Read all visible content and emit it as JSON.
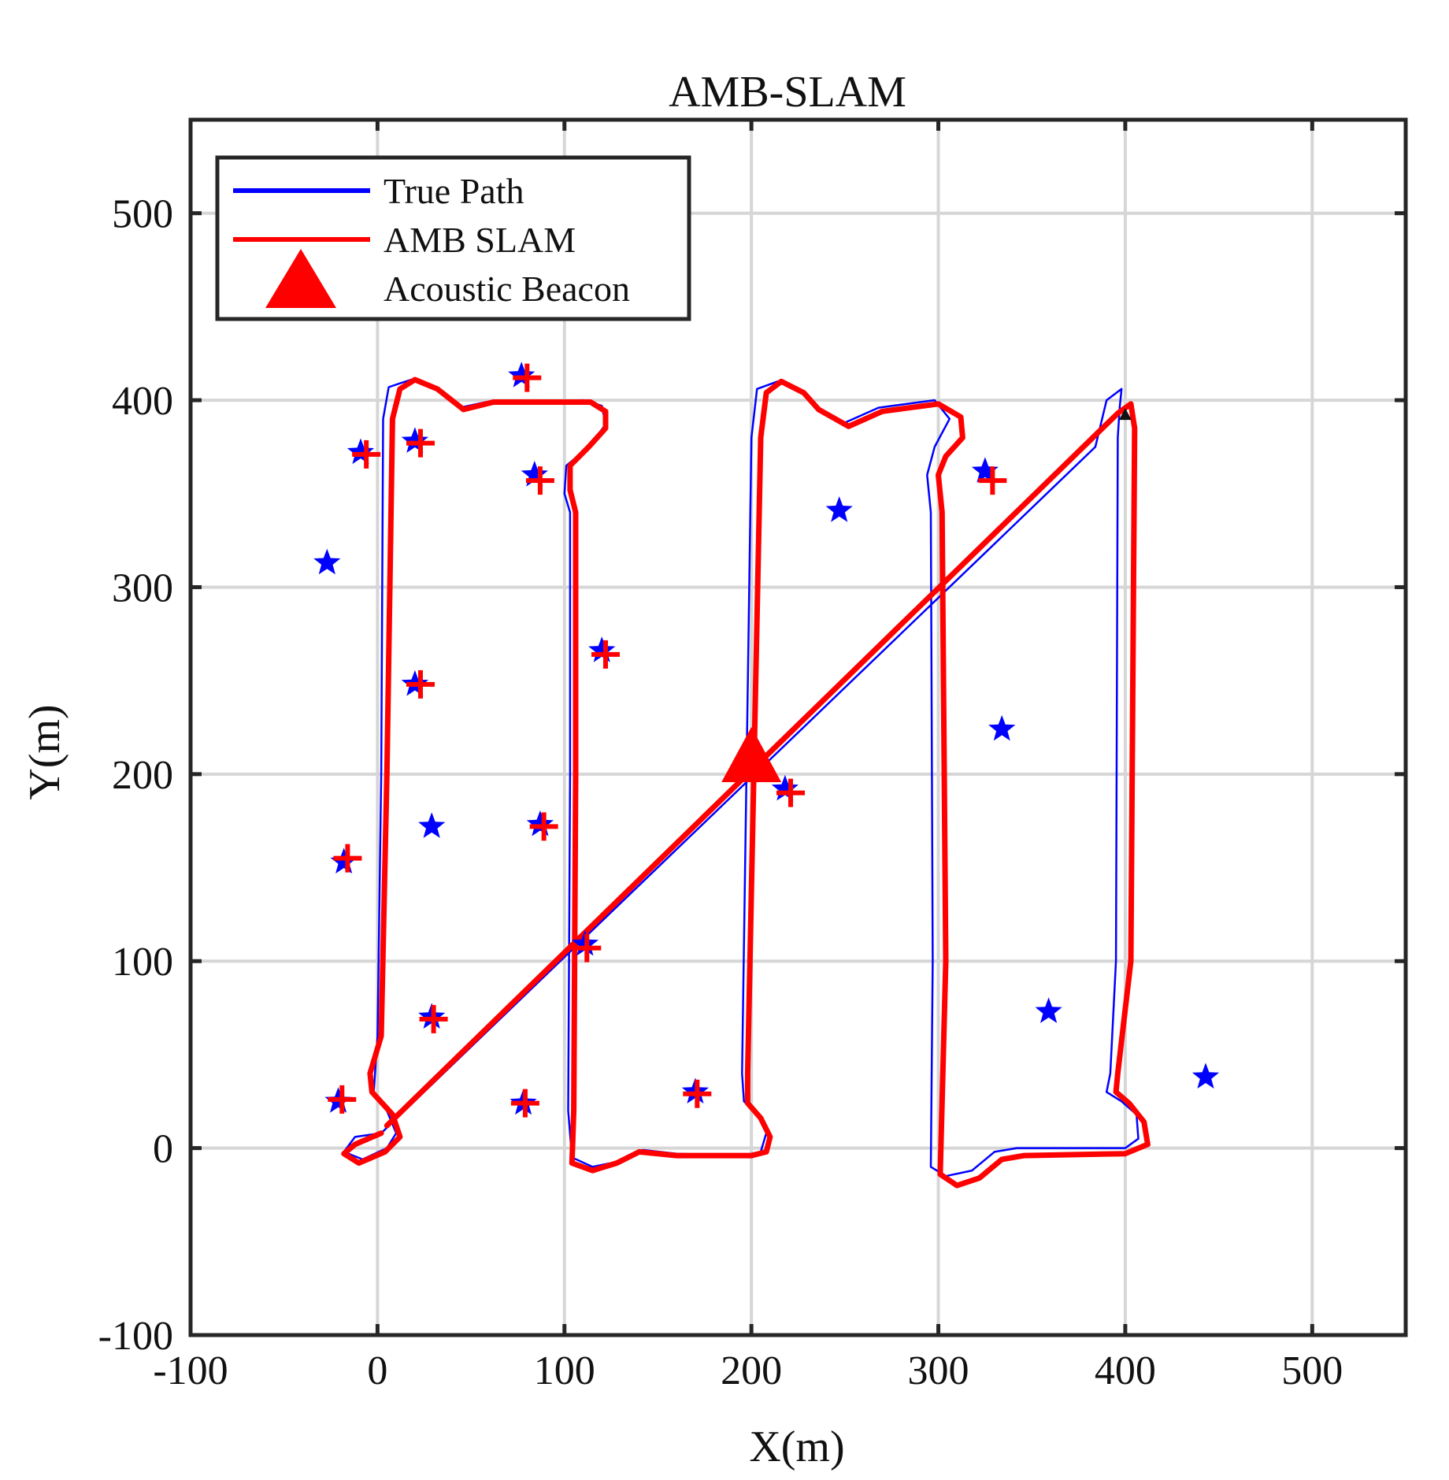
{
  "chart_data": {
    "type": "line",
    "title": "AMB-SLAM",
    "xlabel": "X(m)",
    "ylabel": "Y(m)",
    "xlim": [
      -100,
      550
    ],
    "ylim": [
      -100,
      550
    ],
    "xticks": [
      -100,
      0,
      100,
      200,
      300,
      400,
      500
    ],
    "yticks": [
      -100,
      0,
      100,
      200,
      300,
      400,
      500
    ],
    "xtick_labels": [
      "-100",
      "0",
      "100",
      "200",
      "300",
      "400",
      "500"
    ],
    "ytick_labels": [
      "-100",
      "0",
      "100",
      "200",
      "300",
      "400",
      "500"
    ],
    "grid": true,
    "legend_position": "top-left",
    "legend": [
      {
        "label": "True Path",
        "marker": "line",
        "color": "#0000ff"
      },
      {
        "label": "AMB SLAM",
        "marker": "line",
        "color": "#ff0000"
      },
      {
        "label": "Acoustic Beacon",
        "marker": "triangle",
        "color": "#ff0000"
      }
    ],
    "series": [
      {
        "name": "True Path",
        "color": "#0000ff",
        "points": [
          [
            2,
            8
          ],
          [
            -12,
            6
          ],
          [
            -18,
            -2
          ],
          [
            -8,
            -6
          ],
          [
            5,
            0
          ],
          [
            10,
            8
          ],
          [
            5,
            20
          ],
          [
            -2,
            30
          ],
          [
            0,
            60
          ],
          [
            2,
            200
          ],
          [
            3,
            390
          ],
          [
            6,
            407
          ],
          [
            18,
            411
          ],
          [
            32,
            406
          ],
          [
            44,
            396
          ],
          [
            58,
            399
          ],
          [
            110,
            400
          ],
          [
            120,
            397
          ],
          [
            122,
            387
          ],
          [
            113,
            375
          ],
          [
            101,
            365
          ],
          [
            100,
            350
          ],
          [
            103,
            340
          ],
          [
            103,
            200
          ],
          [
            102,
            20
          ],
          [
            104,
            -5
          ],
          [
            115,
            -10
          ],
          [
            130,
            -7
          ],
          [
            142,
            -1
          ],
          [
            160,
            -3
          ],
          [
            195,
            -4
          ],
          [
            205,
            -2
          ],
          [
            208,
            8
          ],
          [
            203,
            18
          ],
          [
            196,
            25
          ],
          [
            195,
            40
          ],
          [
            200,
            380
          ],
          [
            203,
            406
          ],
          [
            214,
            410
          ],
          [
            228,
            404
          ],
          [
            235,
            396
          ],
          [
            250,
            388
          ],
          [
            268,
            396
          ],
          [
            298,
            400
          ],
          [
            306,
            390
          ],
          [
            298,
            375
          ],
          [
            294,
            360
          ],
          [
            296,
            340
          ],
          [
            297,
            100
          ],
          [
            296,
            -10
          ],
          [
            304,
            -15
          ],
          [
            318,
            -12
          ],
          [
            330,
            -2
          ],
          [
            342,
            0
          ],
          [
            370,
            0
          ],
          [
            400,
            0
          ],
          [
            407,
            5
          ],
          [
            406,
            18
          ],
          [
            398,
            25
          ],
          [
            390,
            30
          ],
          [
            392,
            40
          ],
          [
            395,
            100
          ],
          [
            396,
            380
          ],
          [
            397,
            396
          ],
          [
            398,
            406
          ],
          [
            390,
            400
          ],
          [
            384,
            375
          ],
          [
            2,
            8
          ]
        ]
      },
      {
        "name": "AMB SLAM",
        "color": "#ff0000",
        "points": [
          [
            2,
            8
          ],
          [
            -12,
            2
          ],
          [
            -18,
            -3
          ],
          [
            -10,
            -8
          ],
          [
            4,
            -2
          ],
          [
            12,
            6
          ],
          [
            8,
            18
          ],
          [
            -3,
            30
          ],
          [
            -4,
            40
          ],
          [
            2,
            60
          ],
          [
            5,
            200
          ],
          [
            8,
            390
          ],
          [
            12,
            406
          ],
          [
            20,
            411
          ],
          [
            32,
            406
          ],
          [
            46,
            395
          ],
          [
            62,
            399
          ],
          [
            114,
            399
          ],
          [
            122,
            394
          ],
          [
            122,
            385
          ],
          [
            113,
            375
          ],
          [
            103,
            365
          ],
          [
            103,
            352
          ],
          [
            106,
            340
          ],
          [
            106,
            200
          ],
          [
            105,
            20
          ],
          [
            104,
            -8
          ],
          [
            115,
            -12
          ],
          [
            128,
            -8
          ],
          [
            140,
            -2
          ],
          [
            160,
            -4
          ],
          [
            200,
            -4
          ],
          [
            208,
            -2
          ],
          [
            210,
            6
          ],
          [
            205,
            16
          ],
          [
            198,
            24
          ],
          [
            198,
            40
          ],
          [
            205,
            380
          ],
          [
            208,
            404
          ],
          [
            216,
            410
          ],
          [
            228,
            404
          ],
          [
            236,
            395
          ],
          [
            252,
            386
          ],
          [
            270,
            394
          ],
          [
            300,
            398
          ],
          [
            312,
            391
          ],
          [
            313,
            380
          ],
          [
            304,
            370
          ],
          [
            300,
            360
          ],
          [
            302,
            340
          ],
          [
            304,
            100
          ],
          [
            301,
            -14
          ],
          [
            310,
            -20
          ],
          [
            322,
            -16
          ],
          [
            334,
            -6
          ],
          [
            346,
            -4
          ],
          [
            400,
            -3
          ],
          [
            412,
            2
          ],
          [
            410,
            14
          ],
          [
            402,
            24
          ],
          [
            395,
            30
          ],
          [
            396,
            40
          ],
          [
            403,
            100
          ],
          [
            405,
            385
          ],
          [
            403,
            398
          ],
          [
            396,
            393
          ],
          [
            5,
            12
          ]
        ]
      }
    ],
    "landmarks_true": [
      [
        -27,
        313
      ],
      [
        -9,
        372
      ],
      [
        20,
        378
      ],
      [
        77,
        413
      ],
      [
        84,
        360
      ],
      [
        120,
        266
      ],
      [
        20,
        248
      ],
      [
        29,
        172
      ],
      [
        87,
        173
      ],
      [
        -18,
        153
      ],
      [
        111,
        109
      ],
      [
        29,
        70
      ],
      [
        -21,
        25
      ],
      [
        78,
        24
      ],
      [
        170,
        30
      ],
      [
        218,
        192
      ],
      [
        247,
        341
      ],
      [
        325,
        362
      ],
      [
        334,
        224
      ],
      [
        359,
        73
      ],
      [
        443,
        38
      ]
    ],
    "landmarks_est": [
      [
        -6,
        371
      ],
      [
        23,
        377
      ],
      [
        80,
        412
      ],
      [
        87,
        357
      ],
      [
        122,
        264
      ],
      [
        23,
        248
      ],
      [
        89,
        172
      ],
      [
        -16,
        155
      ],
      [
        112,
        107
      ],
      [
        30,
        69
      ],
      [
        -19,
        26
      ],
      [
        79,
        24
      ],
      [
        171,
        29
      ],
      [
        221,
        190
      ],
      [
        329,
        357
      ]
    ],
    "beacon": {
      "x": 200,
      "y": 205,
      "label": "Acoustic Beacon"
    },
    "beacon_small": {
      "x": 400,
      "y": 392
    }
  }
}
